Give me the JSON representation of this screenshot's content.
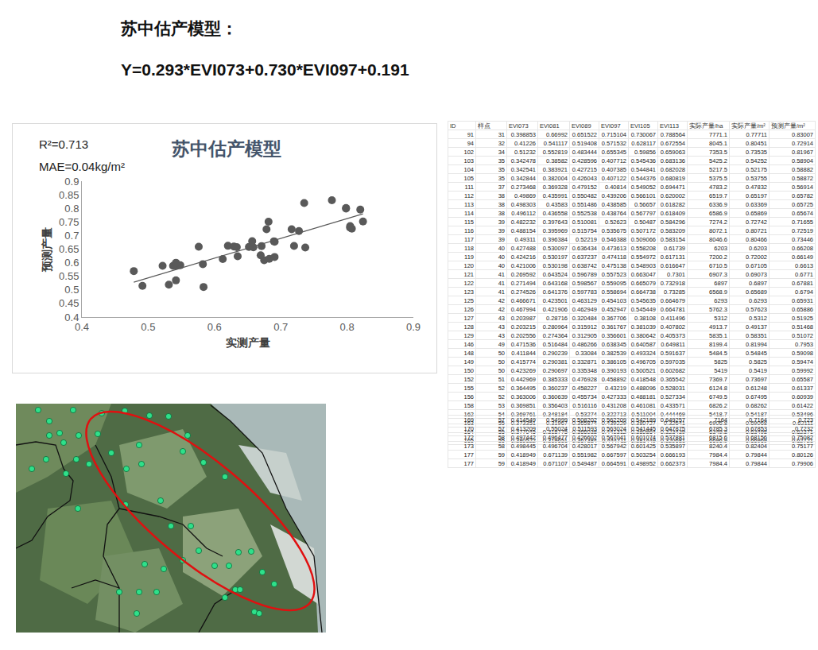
{
  "header": {
    "title": "苏中估产模型：",
    "formula": "Y=0.293*EVI073+0.730*EVI097+0.191"
  },
  "chart_data": {
    "type": "scatter",
    "title": "苏中估产模型",
    "annotations": [
      "R²=0.713",
      "MAE=0.04kg/m²"
    ],
    "x_label": "实测产量",
    "y_label": "预测产量",
    "x": [
      0.77711,
      0.80451,
      0.73535,
      0.54252,
      0.52175,
      0.53755,
      0.47832,
      0.65197,
      0.63369,
      0.65869,
      0.72742,
      0.80721,
      0.80466,
      0.6203,
      0.72002,
      0.67105,
      0.69073,
      0.6897,
      0.65689,
      0.6293,
      0.57623,
      0.5312,
      0.49137,
      0.58351,
      0.81994,
      0.54845,
      0.5825,
      0.5419,
      0.73697,
      0.61248,
      0.67495,
      0.68262,
      0.54187,
      0.69068,
      0.63498,
      0.66969,
      0.7164,
      0.67853,
      0.68156,
      0.82404,
      0.79844,
      0.79844
    ],
    "values": [
      0.83007,
      0.72914,
      0.81967,
      0.58904,
      0.58882,
      0.58872,
      0.56914,
      0.65782,
      0.65725,
      0.65674,
      0.71655,
      0.72519,
      0.73446,
      0.66208,
      0.66149,
      0.6613,
      0.6771,
      0.67881,
      0.6794,
      0.65931,
      0.65886,
      0.51925,
      0.51468,
      0.51072,
      0.7953,
      0.59098,
      0.59474,
      0.59992,
      0.65587,
      0.61337,
      0.60939,
      0.61422,
      0.53496,
      0.62111,
      0.62371,
      0.62721,
      0.723,
      0.7232,
      0.75082,
      0.75177,
      0.80126,
      0.79906
    ],
    "color": "#595959",
    "marker": "circle",
    "grid": false,
    "xlim": [
      0.4,
      0.9
    ],
    "xticks": [
      0.4,
      0.5,
      0.6,
      0.7,
      0.8,
      0.9
    ],
    "ylim": [
      0.4,
      0.9
    ],
    "yticks": [
      0.4,
      0.45,
      0.5,
      0.55,
      0.6,
      0.65,
      0.7,
      0.75,
      0.8,
      0.85,
      0.9
    ]
  },
  "table": {
    "columns": [
      "ID",
      "样点",
      "EVI073",
      "EVI081",
      "EVI089",
      "EVI097",
      "EVI105",
      "EVI113",
      "实际产量/ha",
      "实际产量/m²",
      "预测产量/m²"
    ],
    "rows": [
      [
        "91",
        "31",
        "0.398853",
        "0.66992",
        "0.651522",
        "0.715104",
        "0.730067",
        "0.788564",
        "7771.1",
        "0.77711",
        "0.83007"
      ],
      [
        "94",
        "32",
        "0.41226",
        "0.541117",
        "0.519408",
        "0.571532",
        "0.628117",
        "0.672554",
        "8045.1",
        "0.80451",
        "0.72914"
      ],
      [
        "102",
        "34",
        "0.51232",
        "0.552819",
        "0.483444",
        "0.655345",
        "0.59856",
        "0.659063",
        "7353.5",
        "0.73535",
        "0.81967"
      ],
      [
        "103",
        "35",
        "0.342478",
        "0.38582",
        "0.428596",
        "0.407712",
        "0.545436",
        "0.683136",
        "5425.2",
        "0.54252",
        "0.58904"
      ],
      [
        "104",
        "35",
        "0.342541",
        "0.383921",
        "0.427215",
        "0.407385",
        "0.544841",
        "0.682028",
        "5217.5",
        "0.52175",
        "0.58882"
      ],
      [
        "105",
        "35",
        "0.342844",
        "0.382004",
        "0.426043",
        "0.407122",
        "0.544376",
        "0.680819",
        "5375.5",
        "0.53755",
        "0.58872"
      ],
      [
        "111",
        "37",
        "0.273468",
        "0.369328",
        "0.479152",
        "0.40814",
        "0.549052",
        "0.694471",
        "4783.2",
        "0.47832",
        "0.56914"
      ],
      [
        "112",
        "38",
        "0.49869",
        "0.435991",
        "0.550482",
        "0.439206",
        "0.566101",
        "0.620002",
        "6519.7",
        "0.65197",
        "0.65782"
      ],
      [
        "113",
        "38",
        "0.498303",
        "0.43583",
        "0.551486",
        "0.438585",
        "0.56657",
        "0.618282",
        "6336.9",
        "0.63369",
        "0.65725"
      ],
      [
        "114",
        "38",
        "0.496112",
        "0.436558",
        "0.552538",
        "0.438764",
        "0.567797",
        "0.618409",
        "6586.9",
        "0.65869",
        "0.65674"
      ],
      [
        "115",
        "39",
        "0.482232",
        "0.397643",
        "0.510081",
        "0.52623",
        "0.50487",
        "0.584296",
        "7274.2",
        "0.72742",
        "0.71655"
      ],
      [
        "116",
        "39",
        "0.488154",
        "0.395969",
        "0.515754",
        "0.535675",
        "0.507172",
        "0.583209",
        "8072.1",
        "0.80721",
        "0.72519"
      ],
      [
        "117",
        "39",
        "0.49311",
        "0.396384",
        "0.52219",
        "0.546388",
        "0.509066",
        "0.583154",
        "8046.6",
        "0.80466",
        "0.73446"
      ],
      [
        "118",
        "40",
        "0.427488",
        "0.530097",
        "0.636434",
        "0.473613",
        "0.558208",
        "0.61739",
        "6203",
        "0.6203",
        "0.66208"
      ],
      [
        "119",
        "40",
        "0.424216",
        "0.530197",
        "0.637237",
        "0.474118",
        "0.554972",
        "0.617131",
        "7200.2",
        "0.72002",
        "0.66149"
      ],
      [
        "120",
        "40",
        "0.421006",
        "0.530198",
        "0.638742",
        "0.475138",
        "0.548903",
        "0.616647",
        "6710.5",
        "0.67105",
        "0.6613"
      ],
      [
        "121",
        "41",
        "0.269592",
        "0.643524",
        "0.596789",
        "0.557523",
        "0.663047",
        "0.7301",
        "6907.3",
        "0.69073",
        "0.6771"
      ],
      [
        "122",
        "41",
        "0.271494",
        "0.643168",
        "0.598567",
        "0.559095",
        "0.665079",
        "0.732918",
        "6897",
        "0.6897",
        "0.67881"
      ],
      [
        "123",
        "41",
        "0.274526",
        "0.641376",
        "0.597783",
        "0.558694",
        "0.664738",
        "0.73285",
        "6568.9",
        "0.65689",
        "0.6794"
      ],
      [
        "125",
        "42",
        "0.466671",
        "0.423501",
        "0.463129",
        "0.454103",
        "0.545635",
        "0.664679",
        "6293",
        "0.6293",
        "0.65931"
      ],
      [
        "126",
        "42",
        "0.467994",
        "0.421906",
        "0.462949",
        "0.452947",
        "0.545449",
        "0.664781",
        "5762.3",
        "0.57623",
        "0.65886"
      ],
      [
        "127",
        "43",
        "0.203987",
        "0.28716",
        "0.320484",
        "0.367706",
        "0.38108",
        "0.411496",
        "5312",
        "0.5312",
        "0.51925"
      ],
      [
        "128",
        "43",
        "0.203215",
        "0.280964",
        "0.315912",
        "0.361767",
        "0.381039",
        "0.407802",
        "4913.7",
        "0.49137",
        "0.51468"
      ],
      [
        "129",
        "43",
        "0.202556",
        "0.274364",
        "0.312905",
        "0.356601",
        "0.380642",
        "0.405373",
        "5835.1",
        "0.58351",
        "0.51072"
      ],
      [
        "146",
        "49",
        "0.471536",
        "0.516484",
        "0.486266",
        "0.638345",
        "0.640587",
        "0.649811",
        "8199.4",
        "0.81994",
        "0.7953"
      ],
      [
        "148",
        "50",
        "0.411844",
        "0.290239",
        "0.33084",
        "0.382539",
        "0.493324",
        "0.591637",
        "5484.5",
        "0.54845",
        "0.59098"
      ],
      [
        "149",
        "50",
        "0.415774",
        "0.290381",
        "0.332871",
        "0.386105",
        "0.496705",
        "0.597035",
        "5825",
        "0.5825",
        "0.59474"
      ],
      [
        "150",
        "50",
        "0.423269",
        "0.290697",
        "0.335348",
        "0.390193",
        "0.500521",
        "0.602682",
        "5419",
        "0.5419",
        "0.59992"
      ],
      [
        "152",
        "51",
        "0.442969",
        "0.385333",
        "0.476928",
        "0.458892",
        "0.418548",
        "0.365542",
        "7369.7",
        "0.73697",
        "0.65587"
      ],
      [
        "155",
        "52",
        "0.364495",
        "0.360237",
        "0.458227",
        "0.43219",
        "0.488096",
        "0.528031",
        "6124.8",
        "0.61248",
        "0.61337"
      ],
      [
        "156",
        "52",
        "0.363006",
        "0.360639",
        "0.455734",
        "0.427333",
        "0.488181",
        "0.527334",
        "6749.5",
        "0.67495",
        "0.60939"
      ],
      [
        "158",
        "53",
        "0.369851",
        "0.356403",
        "0.516116",
        "0.431208",
        "0.461081",
        "0.433571",
        "6826.2",
        "0.68262",
        "0.61422"
      ],
      [
        "162",
        "54",
        "0.369761",
        "0.348184",
        "0.53274",
        "0.322713",
        "0.511004",
        "0.444469",
        "5418.7",
        "0.54187",
        "0.53496"
      ],
      [
        "163",
        "55",
        "0.373351",
        "0.31967",
        "0.365874",
        "0.439229",
        "0.380727",
        "0.32641",
        "6906.8",
        "0.69068",
        "0.62111"
      ],
      [
        "164",
        "55",
        "0.377045",
        "0.318775",
        "0.366038",
        "0.441312",
        "0.380864",
        "0.323439",
        "6349.8",
        "0.63498",
        "0.62371"
      ],
      [
        "165",
        "55",
        "0.380522",
        "0.319651",
        "0.367384",
        "0.444711",
        "0.381449",
        "0.320681",
        "6696.9",
        "0.66969",
        "0.62721"
      ]
    ],
    "rows_after_gap": [
      [
        "169",
        "57",
        "0.414549",
        "0.54999",
        "0.508202",
        "0.562209",
        "0.542189",
        "0.649257",
        "7164",
        "0.7164",
        "0.723"
      ],
      [
        "170",
        "57",
        "0.413209",
        "0.55024",
        "0.511593",
        "0.563024",
        "0.541445",
        "0.647875",
        "6785.3",
        "0.67853",
        "0.7232"
      ],
      [
        "172",
        "58",
        "0.497442",
        "0.496477",
        "0.426602",
        "0.567041",
        "0.601074",
        "0.537881",
        "6815.6",
        "0.68156",
        "0.75082"
      ],
      [
        "173",
        "58",
        "0.498445",
        "0.496704",
        "0.428017",
        "0.567942",
        "0.601425",
        "0.535897",
        "8240.4",
        "0.82404",
        "0.75177"
      ],
      [
        "177",
        "59",
        "0.418949",
        "0.671139",
        "0.551982",
        "0.667597",
        "0.503254",
        "0.666193",
        "7984.4",
        "0.79844",
        "0.80126"
      ],
      [
        "177",
        "59",
        "0.418949",
        "0.671107",
        "0.549487",
        "0.664591",
        "0.498952",
        "0.662373",
        "7984.4",
        "0.79844",
        "0.79906"
      ]
    ]
  }
}
